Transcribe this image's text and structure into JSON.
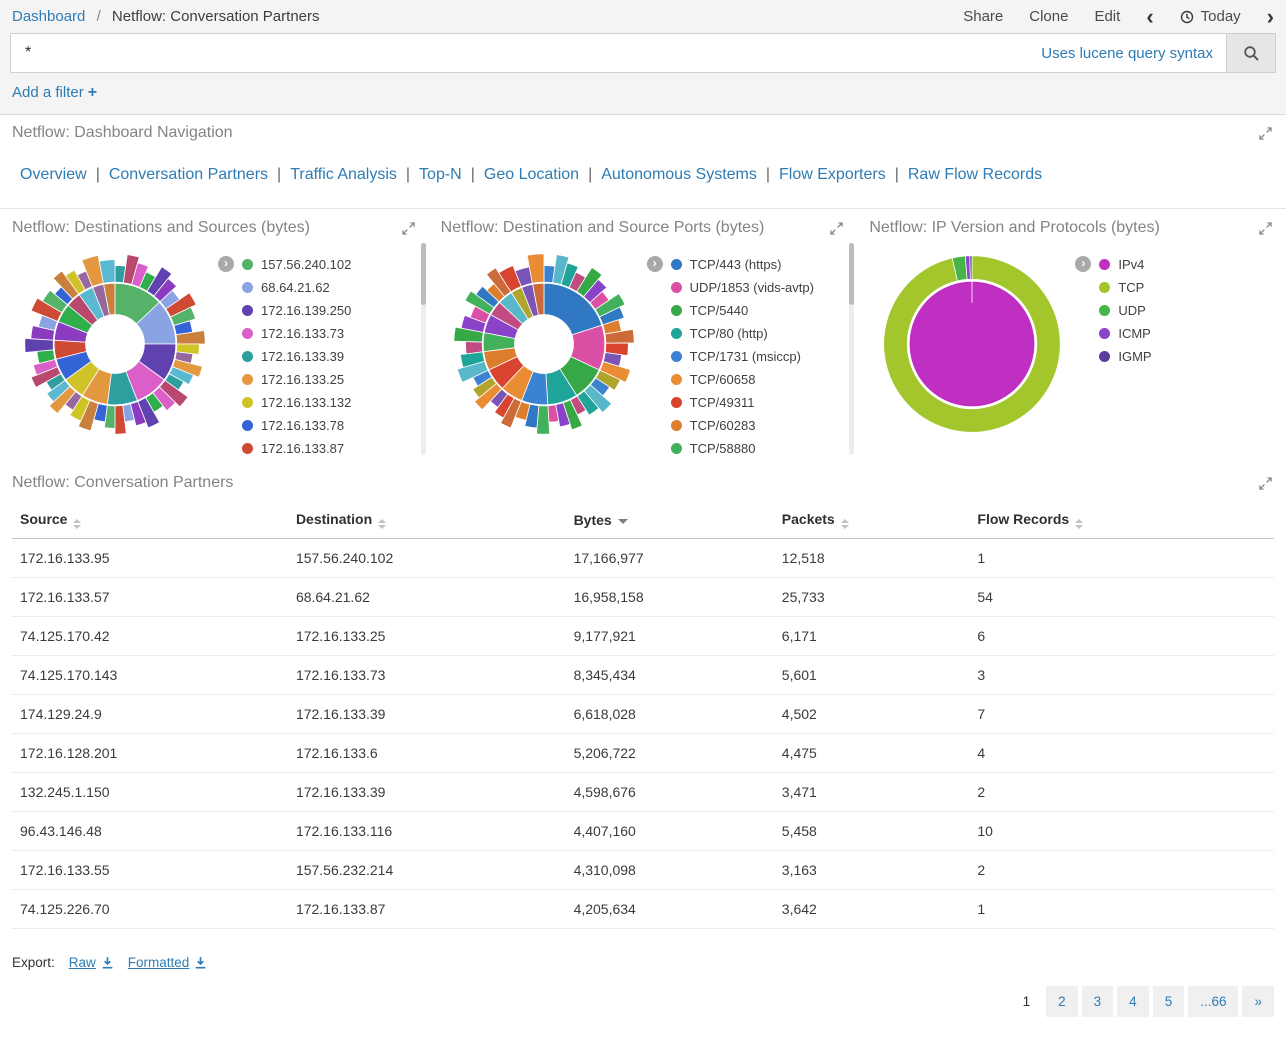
{
  "colors": {
    "link": "#2e7cb3",
    "panel_title": "#848484",
    "topbar_bg": "#f4f4f4",
    "text": "#3c3c3c"
  },
  "icons": {
    "breadcrumb_separator": "/",
    "nav_separator": "|",
    "chevron_left": "‹",
    "chevron_right": "›",
    "legend_toggle": "›",
    "add_filter_plus": "+"
  },
  "breadcrumb": {
    "dashboard": "Dashboard",
    "title": "Netflow: Conversation Partners"
  },
  "topbar": {
    "share": "Share",
    "clone": "Clone",
    "edit": "Edit",
    "time_label": "Today"
  },
  "search": {
    "value": "*",
    "hint": "Uses lucene query syntax"
  },
  "filter_bar": {
    "add_label": "Add a filter"
  },
  "nav_panel": {
    "title": "Netflow: Dashboard Navigation",
    "links": [
      "Overview",
      "Conversation Partners",
      "Traffic Analysis",
      "Top-N",
      "Geo Location",
      "Autonomous Systems",
      "Flow Exporters",
      "Raw Flow Records"
    ]
  },
  "chart_data": [
    {
      "type": "sunburst",
      "title": "Netflow: Destinations and Sources (bytes)",
      "legend": [
        {
          "label": "157.56.240.102",
          "color": "#54b368"
        },
        {
          "label": "68.64.21.62",
          "color": "#8aa3e3"
        },
        {
          "label": "172.16.139.250",
          "color": "#6041b0"
        },
        {
          "label": "172.16.133.73",
          "color": "#da5fc8"
        },
        {
          "label": "172.16.133.39",
          "color": "#2f9e9e"
        },
        {
          "label": "172.16.133.25",
          "color": "#e3973e"
        },
        {
          "label": "172.16.133.132",
          "color": "#cfc327"
        },
        {
          "label": "172.16.133.78",
          "color": "#3464d8"
        },
        {
          "label": "172.16.133.87",
          "color": "#cf4a35"
        }
      ],
      "inner_ring": [
        {
          "color": "#54b368",
          "pct": 13
        },
        {
          "color": "#8aa3e3",
          "pct": 12
        },
        {
          "color": "#6041b0",
          "pct": 10
        },
        {
          "color": "#da5fc8",
          "pct": 9
        },
        {
          "color": "#2f9e9e",
          "pct": 8
        },
        {
          "color": "#e3973e",
          "pct": 7
        },
        {
          "color": "#cfc327",
          "pct": 6
        },
        {
          "color": "#3464d8",
          "pct": 6
        },
        {
          "color": "#cf4a35",
          "pct": 5
        },
        {
          "color": "#8a3bbf",
          "pct": 5
        },
        {
          "color": "#2fae4a",
          "pct": 5
        },
        {
          "color": "#b8486d",
          "pct": 4
        },
        {
          "color": "#5bb8d1",
          "pct": 4
        },
        {
          "color": "#97689e",
          "pct": 3
        },
        {
          "color": "#c9803c",
          "pct": 3
        }
      ],
      "palette": [
        "#54b368",
        "#8aa3e3",
        "#6041b0",
        "#da5fc8",
        "#2f9e9e",
        "#e3973e",
        "#cfc327",
        "#3464d8",
        "#cf4a35",
        "#8a3bbf",
        "#2fae4a",
        "#b8486d",
        "#5bb8d1",
        "#97689e",
        "#c9803c"
      ],
      "has_scrollbar": true
    },
    {
      "type": "sunburst",
      "title": "Netflow: Destination and Source Ports (bytes)",
      "legend": [
        {
          "label": "TCP/443 (https)",
          "color": "#3178c2"
        },
        {
          "label": "UDP/1853 (vids-avtp)",
          "color": "#db4fa4"
        },
        {
          "label": "TCP/5440",
          "color": "#36a846"
        },
        {
          "label": "TCP/80 (http)",
          "color": "#1fa499"
        },
        {
          "label": "TCP/1731 (msiccp)",
          "color": "#3b82d1"
        },
        {
          "label": "TCP/60658",
          "color": "#ea8c34"
        },
        {
          "label": "TCP/49311",
          "color": "#d8442f"
        },
        {
          "label": "TCP/60283",
          "color": "#dd7e2d"
        },
        {
          "label": "TCP/58880",
          "color": "#43b05c"
        }
      ],
      "inner_ring": [
        {
          "color": "#3178c2",
          "pct": 20
        },
        {
          "color": "#db4fa4",
          "pct": 12
        },
        {
          "color": "#36a846",
          "pct": 9
        },
        {
          "color": "#1fa499",
          "pct": 8
        },
        {
          "color": "#3b82d1",
          "pct": 7
        },
        {
          "color": "#ea8c34",
          "pct": 6
        },
        {
          "color": "#d8442f",
          "pct": 6
        },
        {
          "color": "#dd7e2d",
          "pct": 5
        },
        {
          "color": "#43b05c",
          "pct": 5
        },
        {
          "color": "#8a42c8",
          "pct": 5
        },
        {
          "color": "#c24b82",
          "pct": 4
        },
        {
          "color": "#58b8c9",
          "pct": 4
        },
        {
          "color": "#b0a42c",
          "pct": 3
        },
        {
          "color": "#7a55b5",
          "pct": 3
        },
        {
          "color": "#cc6a3a",
          "pct": 3
        }
      ],
      "palette": [
        "#3178c2",
        "#db4fa4",
        "#36a846",
        "#1fa499",
        "#3b82d1",
        "#ea8c34",
        "#d8442f",
        "#dd7e2d",
        "#43b05c",
        "#8a42c8",
        "#c24b82",
        "#58b8c9",
        "#b0a42c",
        "#7a55b5",
        "#cc6a3a"
      ],
      "has_scrollbar": true
    },
    {
      "type": "donut",
      "title": "Netflow: IP Version and Protocols (bytes)",
      "legend": [
        {
          "label": "IPv4",
          "color": "#bf30c2"
        },
        {
          "label": "TCP",
          "color": "#a2c62c"
        },
        {
          "label": "UDP",
          "color": "#46b449"
        },
        {
          "label": "ICMP",
          "color": "#8a42c8"
        },
        {
          "label": "IGMP",
          "color": "#5c3d9e"
        }
      ],
      "rings": {
        "inner": [
          {
            "label": "IPv4",
            "color": "#bf30c2",
            "pct": 100
          }
        ],
        "outer": [
          {
            "label": "TCP",
            "color": "#a2c62c",
            "pct": 96.4
          },
          {
            "label": "UDP",
            "color": "#46b449",
            "pct": 2.4
          },
          {
            "label": "ICMP",
            "color": "#8a42c8",
            "pct": 0.8
          },
          {
            "label": "IGMP",
            "color": "#5c3d9e",
            "pct": 0.4
          }
        ]
      },
      "has_scrollbar": false
    }
  ],
  "table_panel": {
    "title": "Netflow: Conversation Partners",
    "columns": [
      {
        "label": "Source",
        "sort": "none"
      },
      {
        "label": "Destination",
        "sort": "none"
      },
      {
        "label": "Bytes",
        "sort": "desc"
      },
      {
        "label": "Packets",
        "sort": "none"
      },
      {
        "label": "Flow Records",
        "sort": "none"
      }
    ],
    "rows": [
      [
        "172.16.133.95",
        "157.56.240.102",
        "17,166,977",
        "12,518",
        "1"
      ],
      [
        "172.16.133.57",
        "68.64.21.62",
        "16,958,158",
        "25,733",
        "54"
      ],
      [
        "74.125.170.42",
        "172.16.133.25",
        "9,177,921",
        "6,171",
        "6"
      ],
      [
        "74.125.170.143",
        "172.16.133.73",
        "8,345,434",
        "5,601",
        "3"
      ],
      [
        "174.129.24.9",
        "172.16.133.39",
        "6,618,028",
        "4,502",
        "7"
      ],
      [
        "172.16.128.201",
        "172.16.133.6",
        "5,206,722",
        "4,475",
        "4"
      ],
      [
        "132.245.1.150",
        "172.16.133.39",
        "4,598,676",
        "3,471",
        "2"
      ],
      [
        "96.43.146.48",
        "172.16.133.116",
        "4,407,160",
        "5,458",
        "10"
      ],
      [
        "172.16.133.55",
        "157.56.232.214",
        "4,310,098",
        "3,163",
        "2"
      ],
      [
        "74.125.226.70",
        "172.16.133.87",
        "4,205,634",
        "3,642",
        "1"
      ]
    ]
  },
  "export_bar": {
    "label": "Export:",
    "raw": "Raw",
    "formatted": "Formatted"
  },
  "pagination": {
    "pages": [
      "1",
      "2",
      "3",
      "4",
      "5",
      "...66",
      "»"
    ],
    "active": "1"
  }
}
